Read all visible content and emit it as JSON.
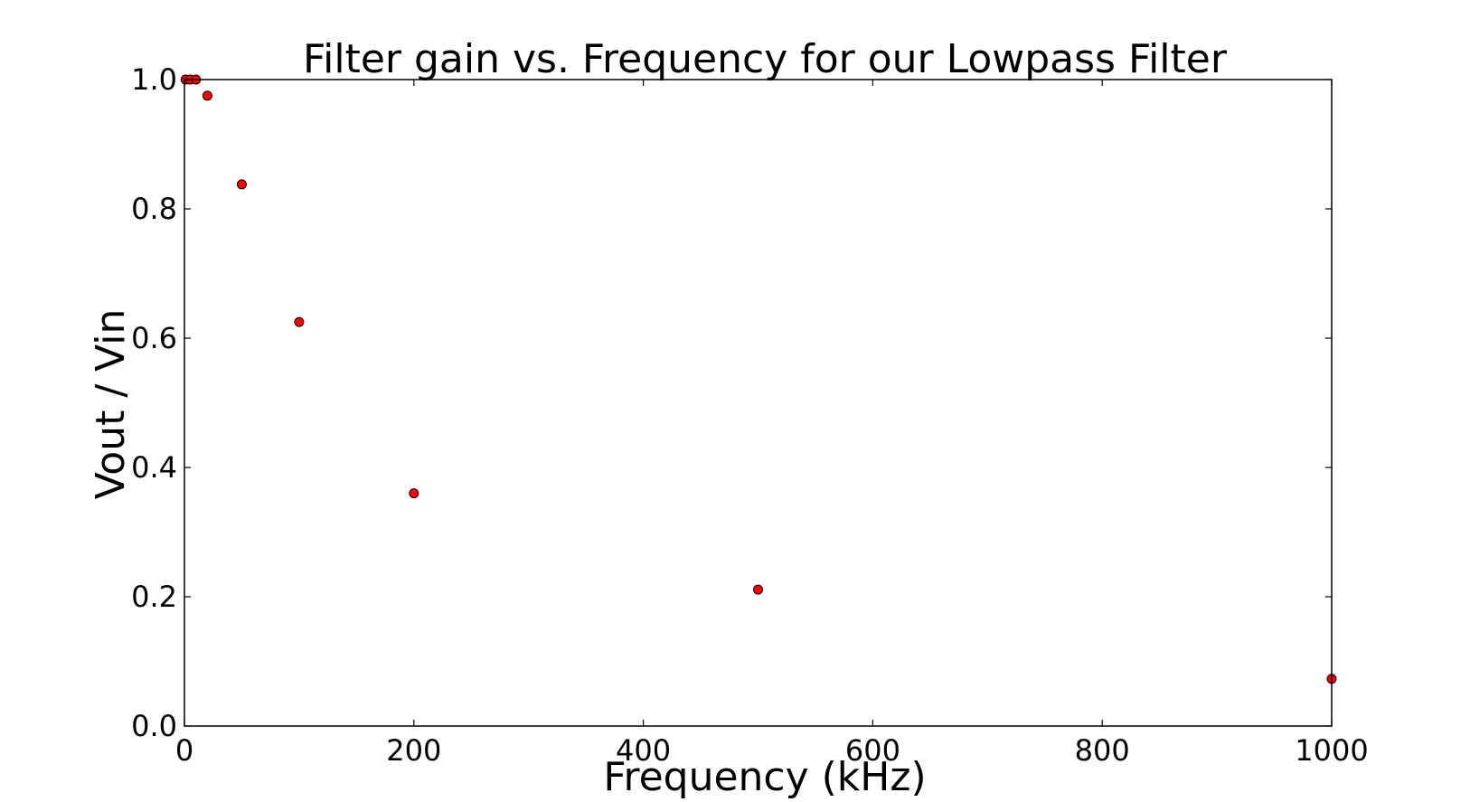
{
  "chart_data": {
    "type": "scatter",
    "title": "Filter gain vs. Frequency for our Lowpass Filter",
    "xlabel": "Frequency (kHz)",
    "ylabel": "Vout / Vin",
    "xlim": [
      0,
      1000
    ],
    "ylim": [
      0.0,
      1.0
    ],
    "xticks": [
      0,
      200,
      400,
      600,
      800,
      1000
    ],
    "xtick_labels": [
      "0",
      "200",
      "400",
      "600",
      "800",
      "1000"
    ],
    "yticks": [
      0.0,
      0.2,
      0.4,
      0.6,
      0.8,
      1.0
    ],
    "ytick_labels": [
      "0.0",
      "0.2",
      "0.4",
      "0.6",
      "0.8",
      "1.0"
    ],
    "grid": false,
    "marker_color": "#ff0000",
    "points": [
      {
        "x": 1,
        "y": 1.0
      },
      {
        "x": 5,
        "y": 1.0
      },
      {
        "x": 10,
        "y": 1.0
      },
      {
        "x": 20,
        "y": 0.975
      },
      {
        "x": 50,
        "y": 0.838
      },
      {
        "x": 100,
        "y": 0.625
      },
      {
        "x": 200,
        "y": 0.36
      },
      {
        "x": 500,
        "y": 0.211
      },
      {
        "x": 1000,
        "y": 0.073
      }
    ]
  }
}
